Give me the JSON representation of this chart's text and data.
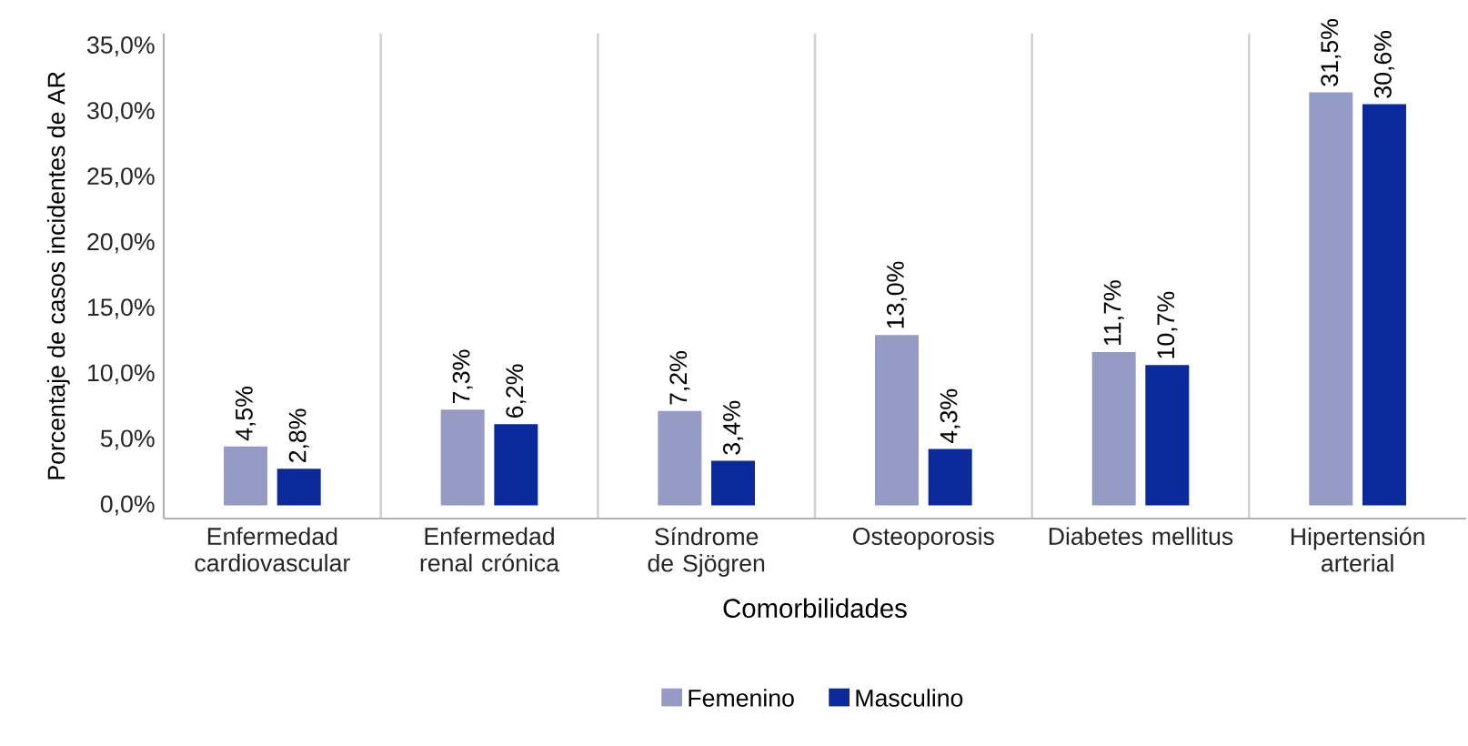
{
  "chart_data": {
    "type": "bar",
    "xlabel": "Comorbilidades",
    "ylabel": "Porcentaje de casos incidentes de AR",
    "categories": [
      "Enfermedad cardiovascular",
      "Enfermedad renal crónica",
      "Síndrome de Sjögren",
      "Osteoporosis",
      "Diabetes mellitus",
      "Hipertensión arterial"
    ],
    "series": [
      {
        "name": "Femenino",
        "color": "#959bc4",
        "values": [
          4.5,
          7.3,
          7.2,
          13.0,
          11.7,
          31.5
        ],
        "value_labels": [
          "4,5%",
          "7,3%",
          "7,2%",
          "13,0%",
          "11,7%",
          "31,5%"
        ]
      },
      {
        "name": "Masculino",
        "color": "#0a2a9c",
        "values": [
          2.8,
          6.2,
          3.4,
          4.3,
          10.7,
          30.6
        ],
        "value_labels": [
          "2,8%",
          "6,2%",
          "3,4%",
          "4,3%",
          "10,7%",
          "30,6%"
        ]
      }
    ],
    "ylim": [
      -1,
      36
    ],
    "yticks": [
      {
        "value": 0,
        "label": "0,0%"
      },
      {
        "value": 5,
        "label": "5,0%"
      },
      {
        "value": 10,
        "label": "10,0%"
      },
      {
        "value": 15,
        "label": "15,0%"
      },
      {
        "value": 20,
        "label": "20,0%"
      },
      {
        "value": 25,
        "label": "25,0%"
      },
      {
        "value": 30,
        "label": "30,0%"
      },
      {
        "value": 35,
        "label": "35,0%"
      }
    ],
    "grid": "x",
    "legend": "bottom"
  }
}
